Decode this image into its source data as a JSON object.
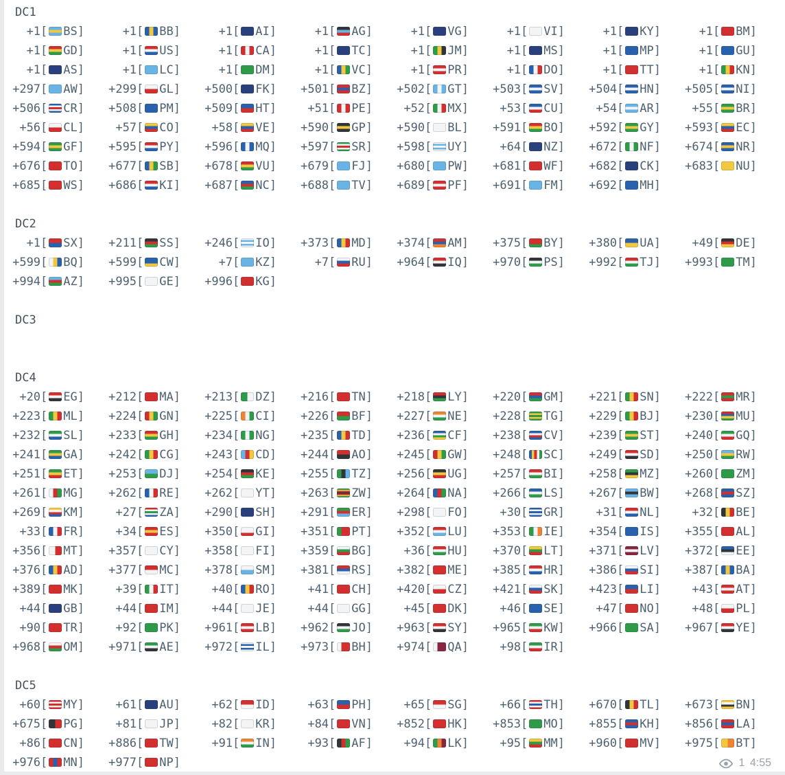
{
  "colors": {
    "text": "#4e6170",
    "section": "#44525c",
    "meta": "#9aa1a9"
  },
  "message": {
    "sections": [
      {
        "title": "DC1",
        "entries": [
          [
            "+1",
            "BS"
          ],
          [
            "+1",
            "BB"
          ],
          [
            "+1",
            "AI"
          ],
          [
            "+1",
            "AG"
          ],
          [
            "+1",
            "VG"
          ],
          [
            "+1",
            "VI"
          ],
          [
            "+1",
            "KY"
          ],
          [
            "+1",
            "BM"
          ],
          [
            "+1",
            "GD"
          ],
          [
            "+1",
            "US"
          ],
          [
            "+1",
            "CA"
          ],
          [
            "+1",
            "TC"
          ],
          [
            "+1",
            "JM"
          ],
          [
            "+1",
            "MS"
          ],
          [
            "+1",
            "MP"
          ],
          [
            "+1",
            "GU"
          ],
          [
            "+1",
            "AS"
          ],
          [
            "+1",
            "LC"
          ],
          [
            "+1",
            "DM"
          ],
          [
            "+1",
            "VC"
          ],
          [
            "+1",
            "PR"
          ],
          [
            "+1",
            "DO"
          ],
          [
            "+1",
            "TT"
          ],
          [
            "+1",
            "KN"
          ],
          [
            "+297",
            "AW"
          ],
          [
            "+299",
            "GL"
          ],
          [
            "+500",
            "FK"
          ],
          [
            "+501",
            "BZ"
          ],
          [
            "+502",
            "GT"
          ],
          [
            "+503",
            "SV"
          ],
          [
            "+504",
            "HN"
          ],
          [
            "+505",
            "NI"
          ],
          [
            "+506",
            "CR"
          ],
          [
            "+508",
            "PM"
          ],
          [
            "+509",
            "HT"
          ],
          [
            "+51",
            "PE"
          ],
          [
            "+52",
            "MX"
          ],
          [
            "+53",
            "CU"
          ],
          [
            "+54",
            "AR"
          ],
          [
            "+55",
            "BR"
          ],
          [
            "+56",
            "CL"
          ],
          [
            "+57",
            "CO"
          ],
          [
            "+58",
            "VE"
          ],
          [
            "+590",
            "GP"
          ],
          [
            "+590",
            "BL"
          ],
          [
            "+591",
            "BO"
          ],
          [
            "+592",
            "GY"
          ],
          [
            "+593",
            "EC"
          ],
          [
            "+594",
            "GF"
          ],
          [
            "+595",
            "PY"
          ],
          [
            "+596",
            "MQ"
          ],
          [
            "+597",
            "SR"
          ],
          [
            "+598",
            "UY"
          ],
          [
            "+64",
            "NZ"
          ],
          [
            "+672",
            "NF"
          ],
          [
            "+674",
            "NR"
          ],
          [
            "+676",
            "TO"
          ],
          [
            "+677",
            "SB"
          ],
          [
            "+678",
            "VU"
          ],
          [
            "+679",
            "FJ"
          ],
          [
            "+680",
            "PW"
          ],
          [
            "+681",
            "WF"
          ],
          [
            "+682",
            "CK"
          ],
          [
            "+683",
            "NU"
          ],
          [
            "+685",
            "WS"
          ],
          [
            "+686",
            "KI"
          ],
          [
            "+687",
            "NC"
          ],
          [
            "+688",
            "TV"
          ],
          [
            "+689",
            "PF"
          ],
          [
            "+691",
            "FM"
          ],
          [
            "+692",
            "MH"
          ]
        ]
      },
      {
        "title": "DC2",
        "entries": [
          [
            "+1",
            "SX"
          ],
          [
            "+211",
            "SS"
          ],
          [
            "+246",
            "IO"
          ],
          [
            "+373",
            "MD"
          ],
          [
            "+374",
            "AM"
          ],
          [
            "+375",
            "BY"
          ],
          [
            "+380",
            "UA"
          ],
          [
            "+49",
            "DE"
          ],
          [
            "+599",
            "BQ"
          ],
          [
            "+599",
            "CW"
          ],
          [
            "+7",
            "KZ"
          ],
          [
            "+7",
            "RU"
          ],
          [
            "+964",
            "IQ"
          ],
          [
            "+970",
            "PS"
          ],
          [
            "+992",
            "TJ"
          ],
          [
            "+993",
            "TM"
          ],
          [
            "+994",
            "AZ"
          ],
          [
            "+995",
            "GE"
          ],
          [
            "+996",
            "KG"
          ]
        ]
      },
      {
        "title": "DC3",
        "entries": []
      },
      {
        "title": "DC4",
        "entries": [
          [
            "+20",
            "EG"
          ],
          [
            "+212",
            "MA"
          ],
          [
            "+213",
            "DZ"
          ],
          [
            "+216",
            "TN"
          ],
          [
            "+218",
            "LY"
          ],
          [
            "+220",
            "GM"
          ],
          [
            "+221",
            "SN"
          ],
          [
            "+222",
            "MR"
          ],
          [
            "+223",
            "ML"
          ],
          [
            "+224",
            "GN"
          ],
          [
            "+225",
            "CI"
          ],
          [
            "+226",
            "BF"
          ],
          [
            "+227",
            "NE"
          ],
          [
            "+228",
            "TG"
          ],
          [
            "+229",
            "BJ"
          ],
          [
            "+230",
            "MU"
          ],
          [
            "+232",
            "SL"
          ],
          [
            "+233",
            "GH"
          ],
          [
            "+234",
            "NG"
          ],
          [
            "+235",
            "TD"
          ],
          [
            "+236",
            "CF"
          ],
          [
            "+238",
            "CV"
          ],
          [
            "+239",
            "ST"
          ],
          [
            "+240",
            "GQ"
          ],
          [
            "+241",
            "GA"
          ],
          [
            "+242",
            "CG"
          ],
          [
            "+243",
            "CD"
          ],
          [
            "+244",
            "AO"
          ],
          [
            "+245",
            "GW"
          ],
          [
            "+248",
            "SC"
          ],
          [
            "+249",
            "SD"
          ],
          [
            "+250",
            "RW"
          ],
          [
            "+251",
            "ET"
          ],
          [
            "+253",
            "DJ"
          ],
          [
            "+254",
            "KE"
          ],
          [
            "+255",
            "TZ"
          ],
          [
            "+256",
            "UG"
          ],
          [
            "+257",
            "BI"
          ],
          [
            "+258",
            "MZ"
          ],
          [
            "+260",
            "ZM"
          ],
          [
            "+261",
            "MG"
          ],
          [
            "+262",
            "RE"
          ],
          [
            "+262",
            "YT"
          ],
          [
            "+263",
            "ZW"
          ],
          [
            "+264",
            "NA"
          ],
          [
            "+266",
            "LS"
          ],
          [
            "+267",
            "BW"
          ],
          [
            "+268",
            "SZ"
          ],
          [
            "+269",
            "KM"
          ],
          [
            "+27",
            "ZA"
          ],
          [
            "+290",
            "SH"
          ],
          [
            "+291",
            "ER"
          ],
          [
            "+298",
            "FO"
          ],
          [
            "+30",
            "GR"
          ],
          [
            "+31",
            "NL"
          ],
          [
            "+32",
            "BE"
          ],
          [
            "+33",
            "FR"
          ],
          [
            "+34",
            "ES"
          ],
          [
            "+350",
            "GI"
          ],
          [
            "+351",
            "PT"
          ],
          [
            "+352",
            "LU"
          ],
          [
            "+353",
            "IE"
          ],
          [
            "+354",
            "IS"
          ],
          [
            "+355",
            "AL"
          ],
          [
            "+356",
            "MT"
          ],
          [
            "+357",
            "CY"
          ],
          [
            "+358",
            "FI"
          ],
          [
            "+359",
            "BG"
          ],
          [
            "+36",
            "HU"
          ],
          [
            "+370",
            "LT"
          ],
          [
            "+371",
            "LV"
          ],
          [
            "+372",
            "EE"
          ],
          [
            "+376",
            "AD"
          ],
          [
            "+377",
            "MC"
          ],
          [
            "+378",
            "SM"
          ],
          [
            "+381",
            "RS"
          ],
          [
            "+382",
            "ME"
          ],
          [
            "+385",
            "HR"
          ],
          [
            "+386",
            "SI"
          ],
          [
            "+387",
            "BA"
          ],
          [
            "+389",
            "MK"
          ],
          [
            "+39",
            "IT"
          ],
          [
            "+40",
            "RO"
          ],
          [
            "+41",
            "CH"
          ],
          [
            "+420",
            "CZ"
          ],
          [
            "+421",
            "SK"
          ],
          [
            "+423",
            "LI"
          ],
          [
            "+43",
            "AT"
          ],
          [
            "+44",
            "GB"
          ],
          [
            "+44",
            "IM"
          ],
          [
            "+44",
            "JE"
          ],
          [
            "+44",
            "GG"
          ],
          [
            "+45",
            "DK"
          ],
          [
            "+46",
            "SE"
          ],
          [
            "+47",
            "NO"
          ],
          [
            "+48",
            "PL"
          ],
          [
            "+90",
            "TR"
          ],
          [
            "+92",
            "PK"
          ],
          [
            "+961",
            "LB"
          ],
          [
            "+962",
            "JO"
          ],
          [
            "+963",
            "SY"
          ],
          [
            "+965",
            "KW"
          ],
          [
            "+966",
            "SA"
          ],
          [
            "+967",
            "YE"
          ],
          [
            "+968",
            "OM"
          ],
          [
            "+971",
            "AE"
          ],
          [
            "+972",
            "IL"
          ],
          [
            "+973",
            "BH"
          ],
          [
            "+974",
            "QA"
          ],
          [
            "+98",
            "IR"
          ]
        ]
      },
      {
        "title": "DC5",
        "entries": [
          [
            "+60",
            "MY"
          ],
          [
            "+61",
            "AU"
          ],
          [
            "+62",
            "ID"
          ],
          [
            "+63",
            "PH"
          ],
          [
            "+65",
            "SG"
          ],
          [
            "+66",
            "TH"
          ],
          [
            "+670",
            "TL"
          ],
          [
            "+673",
            "BN"
          ],
          [
            "+675",
            "PG"
          ],
          [
            "+81",
            "JP"
          ],
          [
            "+82",
            "KR"
          ],
          [
            "+84",
            "VN"
          ],
          [
            "+852",
            "HK"
          ],
          [
            "+853",
            "MO"
          ],
          [
            "+855",
            "KH"
          ],
          [
            "+856",
            "LA"
          ],
          [
            "+86",
            "CN"
          ],
          [
            "+886",
            "TW"
          ],
          [
            "+91",
            "IN"
          ],
          [
            "+93",
            "AF"
          ],
          [
            "+94",
            "LK"
          ],
          [
            "+95",
            "MM"
          ],
          [
            "+960",
            "MV"
          ],
          [
            "+975",
            "BT"
          ],
          [
            "+976",
            "MN"
          ],
          [
            "+977",
            "NP"
          ]
        ]
      }
    ],
    "meta": {
      "views": "1",
      "time": "4:55"
    }
  }
}
